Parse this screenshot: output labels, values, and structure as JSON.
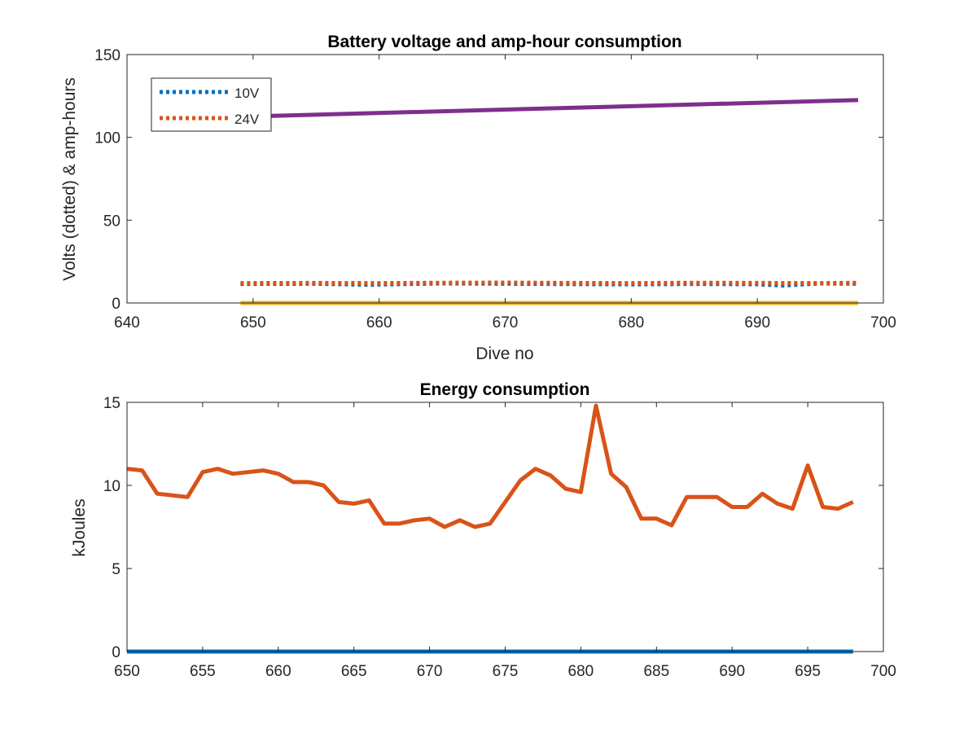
{
  "chart_data": [
    {
      "type": "line",
      "title": "Battery voltage and amp-hour consumption",
      "xlabel": "Dive no",
      "ylabel": "Volts (dotted) & amp-hours",
      "xlim": [
        640,
        700
      ],
      "ylim": [
        0,
        150
      ],
      "xticks": [
        640,
        650,
        660,
        670,
        680,
        690,
        700
      ],
      "yticks": [
        0,
        50,
        100,
        150
      ],
      "grid": false,
      "legend_position": "top-left",
      "series": [
        {
          "name": "10V",
          "style": "dotted",
          "color": "#0072BD",
          "x": [
            649,
            655,
            659,
            665,
            670,
            675,
            680,
            685,
            690,
            692,
            695,
            698
          ],
          "y": [
            11.5,
            11.6,
            11.0,
            11.8,
            11.6,
            11.4,
            11.2,
            11.5,
            11.3,
            10.5,
            11.8,
            11.6
          ]
        },
        {
          "name": "24V",
          "style": "dotted",
          "color": "#D95319",
          "x": [
            649,
            655,
            660,
            665,
            670,
            675,
            680,
            685,
            690,
            695,
            698
          ],
          "y": [
            12.0,
            12.1,
            12.0,
            12.2,
            12.3,
            12.1,
            12.0,
            12.2,
            12.1,
            12.0,
            12.2
          ]
        },
        {
          "style": "solid",
          "color": "#EDB120",
          "x": [
            649,
            698
          ],
          "y": [
            0,
            0
          ]
        },
        {
          "style": "solid",
          "color": "#7E2F8E",
          "x": [
            649,
            698
          ],
          "y": [
            112.5,
            122.5
          ]
        }
      ]
    },
    {
      "type": "line",
      "title": "Energy consumption",
      "xlabel": "",
      "ylabel": "kJoules",
      "xlim": [
        650,
        700
      ],
      "ylim": [
        0,
        15
      ],
      "xticks": [
        650,
        655,
        660,
        665,
        670,
        675,
        680,
        685,
        690,
        695,
        700
      ],
      "yticks": [
        0,
        5,
        10,
        15
      ],
      "grid": false,
      "series": [
        {
          "style": "solid",
          "color": "#0072BD",
          "x": [
            650,
            698
          ],
          "y": [
            0,
            0
          ]
        },
        {
          "style": "solid",
          "color": "#D95319",
          "x": [
            650,
            651,
            652,
            653,
            654,
            655,
            656,
            657,
            658,
            659,
            660,
            661,
            662,
            663,
            664,
            665,
            666,
            667,
            668,
            669,
            670,
            671,
            672,
            673,
            674,
            675,
            676,
            677,
            678,
            679,
            680,
            681,
            682,
            683,
            684,
            685,
            686,
            687,
            688,
            689,
            690,
            691,
            692,
            693,
            694,
            695,
            696,
            697,
            698
          ],
          "y": [
            11.0,
            10.9,
            9.5,
            9.4,
            9.3,
            10.8,
            11.0,
            10.7,
            10.8,
            10.9,
            10.7,
            10.2,
            10.2,
            10.0,
            9.0,
            8.9,
            9.1,
            7.7,
            7.7,
            7.9,
            8.0,
            7.5,
            7.9,
            7.5,
            7.7,
            9.0,
            10.3,
            11.0,
            10.6,
            9.8,
            9.6,
            14.8,
            10.7,
            9.9,
            8.0,
            8.0,
            7.6,
            9.3,
            9.3,
            9.3,
            8.7,
            8.7,
            9.5,
            8.9,
            8.6,
            11.2,
            8.7,
            8.6,
            9.0
          ]
        }
      ]
    }
  ]
}
